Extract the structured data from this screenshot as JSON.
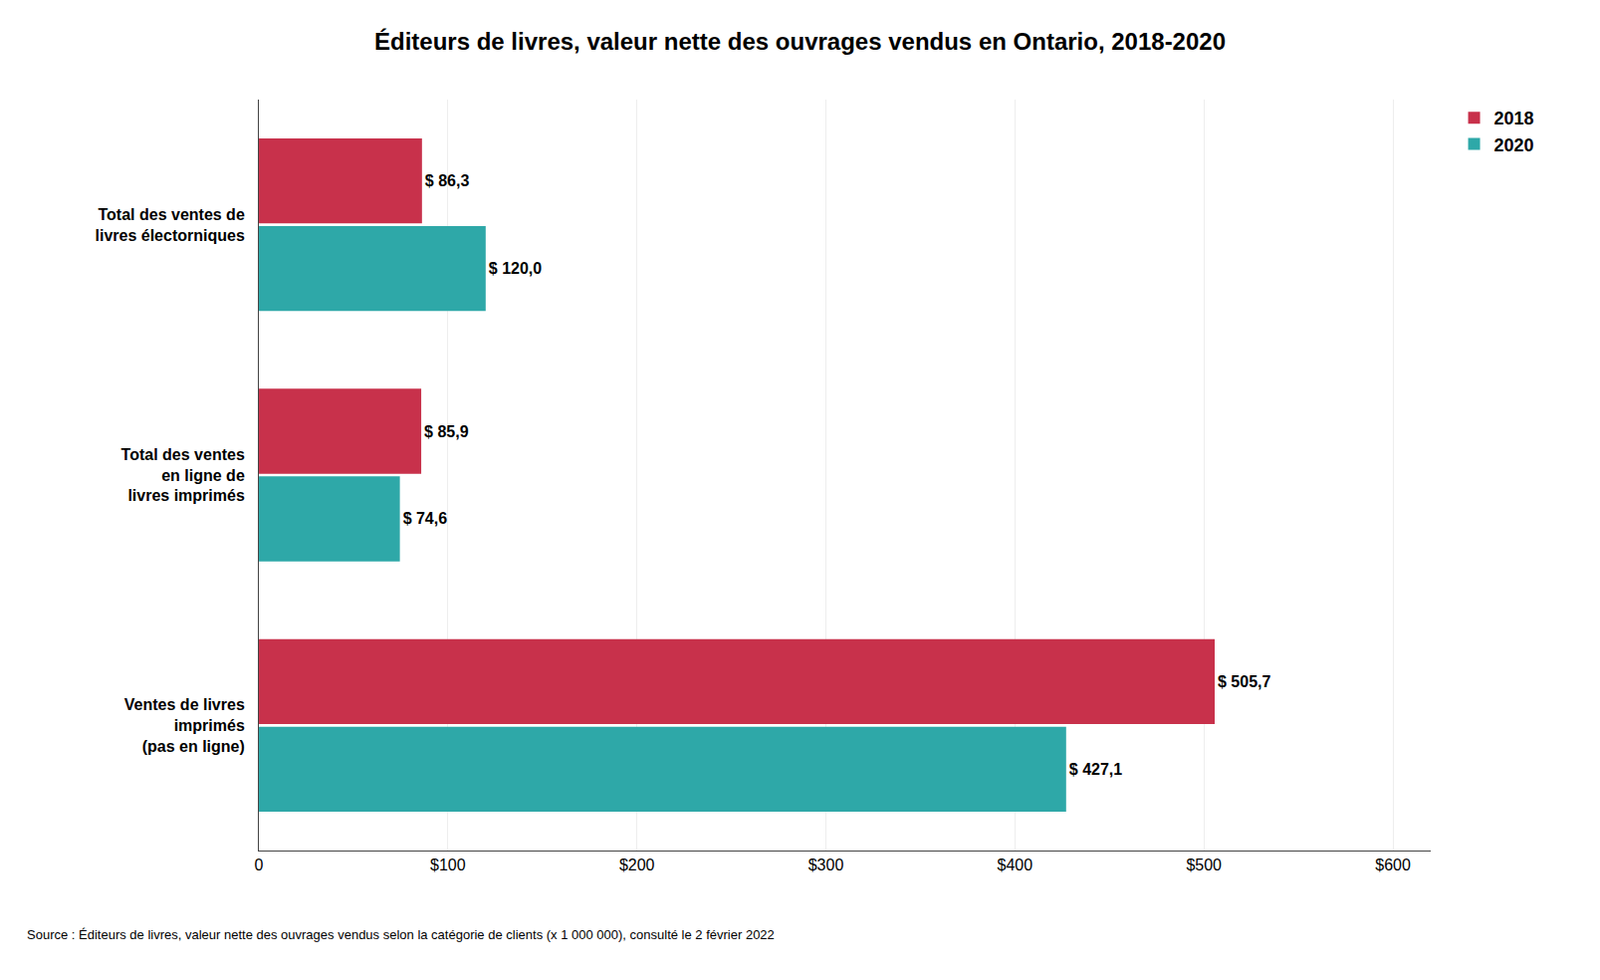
{
  "chart_data": {
    "type": "bar",
    "orientation": "horizontal",
    "title": "Éditeurs de livres, valeur nette des ouvrages vendus en Ontario, 2018-2020",
    "annotations": [
      "Source : Éditeurs de livres, valeur nette des ouvrages vendus selon la catégorie de clients (x 1 000 000), consulté le 2 février 2022"
    ],
    "categories": [
      "Total des ventes de\nlivres électorniques",
      "Total des ventes\nen ligne de\nlivres imprimés",
      "Ventes de livres\nimprimés\n(pas en ligne)"
    ],
    "series": [
      {
        "name": "2018",
        "color": "#c8314b",
        "values": [
          86.3,
          85.9,
          505.7
        ],
        "value_labels": [
          "$ 86,3",
          "$ 85,9",
          "$ 505,7"
        ]
      },
      {
        "name": "2020",
        "color": "#2ea8a8",
        "values": [
          120.0,
          74.6,
          427.1
        ],
        "value_labels": [
          "$ 120,0",
          "$ 74,6",
          "$ 427,1"
        ]
      }
    ],
    "xlim": [
      0,
      620
    ],
    "xticks": [
      0,
      {
        "value": 100,
        "label": "$100"
      },
      {
        "value": 200,
        "label": "$200"
      },
      {
        "value": 300,
        "label": "$300"
      },
      {
        "value": 400,
        "label": "$400"
      },
      {
        "value": 500,
        "label": "$500"
      },
      {
        "value": 600,
        "label": "$600"
      }
    ],
    "grid": true,
    "legend": "upper right",
    "data_labels": true
  }
}
